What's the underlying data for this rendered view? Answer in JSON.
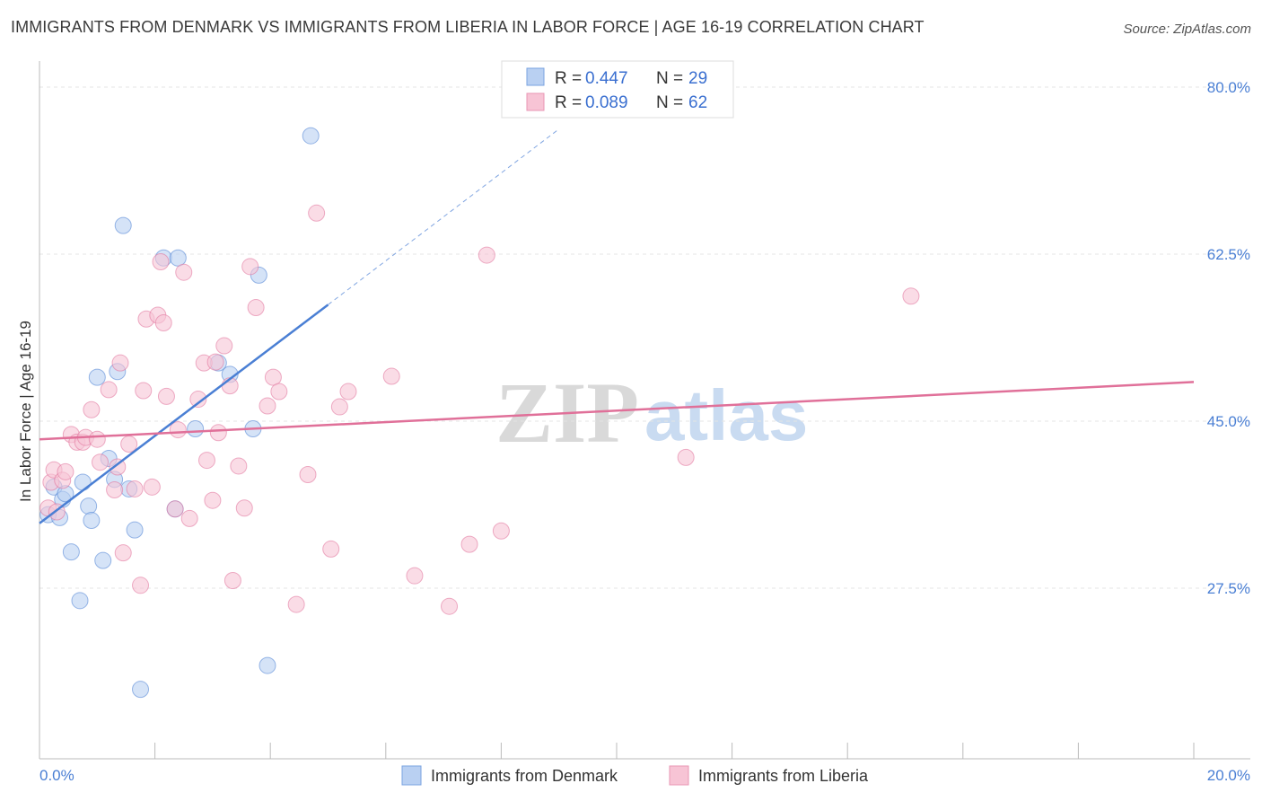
{
  "header": {
    "title": "IMMIGRANTS FROM DENMARK VS IMMIGRANTS FROM LIBERIA IN LABOR FORCE | AGE 16-19 CORRELATION CHART",
    "source": "Source: ZipAtlas.com"
  },
  "watermark": {
    "zip": "ZIP",
    "atlas": "atlas"
  },
  "chart_data": {
    "type": "scatter",
    "title": "IMMIGRANTS FROM DENMARK VS IMMIGRANTS FROM LIBERIA IN LABOR FORCE | AGE 16-19 CORRELATION CHART",
    "xlabel": "",
    "ylabel": "In Labor Force | Age 16-19",
    "xlim": [
      0,
      20
    ],
    "ylim": [
      12,
      83
    ],
    "x_tick_labels": {
      "left": "0.0%",
      "right": "20.0%"
    },
    "y_ticks": [
      {
        "value": 80.0,
        "label": "80.0%"
      },
      {
        "value": 62.5,
        "label": "62.5%"
      },
      {
        "value": 45.0,
        "label": "45.0%"
      },
      {
        "value": 27.5,
        "label": "27.5%"
      }
    ],
    "legend_stats": [
      {
        "r_label": "R =",
        "r_value": "0.447",
        "n_label": "N =",
        "n_value": "29"
      },
      {
        "r_label": "R =",
        "r_value": "0.089",
        "n_label": "N =",
        "n_value": "62"
      }
    ],
    "series": [
      {
        "name": "Immigrants from Denmark",
        "color": "#4a7fd4",
        "fill": "#b9d0f2",
        "trend": {
          "x0": 0.0,
          "y0": 34.3,
          "x1": 5.0,
          "y1": 57.2,
          "dash_to_x": 9.0,
          "dash_to_y": 75.6
        },
        "points": [
          [
            0.15,
            35.2
          ],
          [
            0.25,
            38.1
          ],
          [
            0.35,
            34.9
          ],
          [
            0.4,
            36.8
          ],
          [
            0.45,
            37.4
          ],
          [
            0.55,
            31.3
          ],
          [
            0.7,
            26.2
          ],
          [
            0.75,
            38.6
          ],
          [
            0.85,
            36.1
          ],
          [
            0.9,
            34.6
          ],
          [
            1.0,
            49.6
          ],
          [
            1.1,
            30.4
          ],
          [
            1.2,
            41.1
          ],
          [
            1.3,
            38.9
          ],
          [
            1.35,
            50.2
          ],
          [
            1.45,
            65.5
          ],
          [
            1.55,
            37.9
          ],
          [
            1.65,
            33.6
          ],
          [
            1.75,
            16.9
          ],
          [
            2.15,
            62.1
          ],
          [
            2.35,
            35.8
          ],
          [
            2.4,
            62.1
          ],
          [
            2.7,
            44.2
          ],
          [
            3.1,
            51.1
          ],
          [
            3.3,
            49.9
          ],
          [
            3.7,
            44.2
          ],
          [
            3.8,
            60.3
          ],
          [
            3.95,
            19.4
          ],
          [
            4.7,
            74.9
          ]
        ]
      },
      {
        "name": "Immigrants from Liberia",
        "color": "#e07099",
        "fill": "#f7c4d5",
        "trend": {
          "x0": 0.0,
          "y0": 43.1,
          "x1": 20.0,
          "y1": 49.1
        },
        "points": [
          [
            0.15,
            35.9
          ],
          [
            0.2,
            38.6
          ],
          [
            0.25,
            39.9
          ],
          [
            0.4,
            38.8
          ],
          [
            0.45,
            39.7
          ],
          [
            0.55,
            43.6
          ],
          [
            0.65,
            42.8
          ],
          [
            0.75,
            42.8
          ],
          [
            0.8,
            43.3
          ],
          [
            0.9,
            46.2
          ],
          [
            1.0,
            43.1
          ],
          [
            1.05,
            40.7
          ],
          [
            1.2,
            48.3
          ],
          [
            1.3,
            37.8
          ],
          [
            1.35,
            40.2
          ],
          [
            1.4,
            51.1
          ],
          [
            1.45,
            31.2
          ],
          [
            1.55,
            42.6
          ],
          [
            1.65,
            37.9
          ],
          [
            1.75,
            27.8
          ],
          [
            1.8,
            48.2
          ],
          [
            1.85,
            55.7
          ],
          [
            1.95,
            38.1
          ],
          [
            2.05,
            56.1
          ],
          [
            2.1,
            61.7
          ],
          [
            2.15,
            55.3
          ],
          [
            2.2,
            47.6
          ],
          [
            2.35,
            35.8
          ],
          [
            2.4,
            44.1
          ],
          [
            2.5,
            60.6
          ],
          [
            2.6,
            34.8
          ],
          [
            2.75,
            47.3
          ],
          [
            2.85,
            51.1
          ],
          [
            2.9,
            40.9
          ],
          [
            3.0,
            36.7
          ],
          [
            3.05,
            51.2
          ],
          [
            3.1,
            43.8
          ],
          [
            3.2,
            52.9
          ],
          [
            3.3,
            48.7
          ],
          [
            3.35,
            28.3
          ],
          [
            3.45,
            40.3
          ],
          [
            3.55,
            35.9
          ],
          [
            3.65,
            61.2
          ],
          [
            3.75,
            56.9
          ],
          [
            3.95,
            46.6
          ],
          [
            4.05,
            49.6
          ],
          [
            4.15,
            48.1
          ],
          [
            4.45,
            25.8
          ],
          [
            4.65,
            39.4
          ],
          [
            4.8,
            66.8
          ],
          [
            5.05,
            31.6
          ],
          [
            5.2,
            46.5
          ],
          [
            5.35,
            48.1
          ],
          [
            6.1,
            49.7
          ],
          [
            6.5,
            28.8
          ],
          [
            7.1,
            25.6
          ],
          [
            7.45,
            32.1
          ],
          [
            7.75,
            62.4
          ],
          [
            8.0,
            33.5
          ],
          [
            11.2,
            41.2
          ],
          [
            15.1,
            58.1
          ],
          [
            0.3,
            35.5
          ]
        ]
      }
    ]
  }
}
